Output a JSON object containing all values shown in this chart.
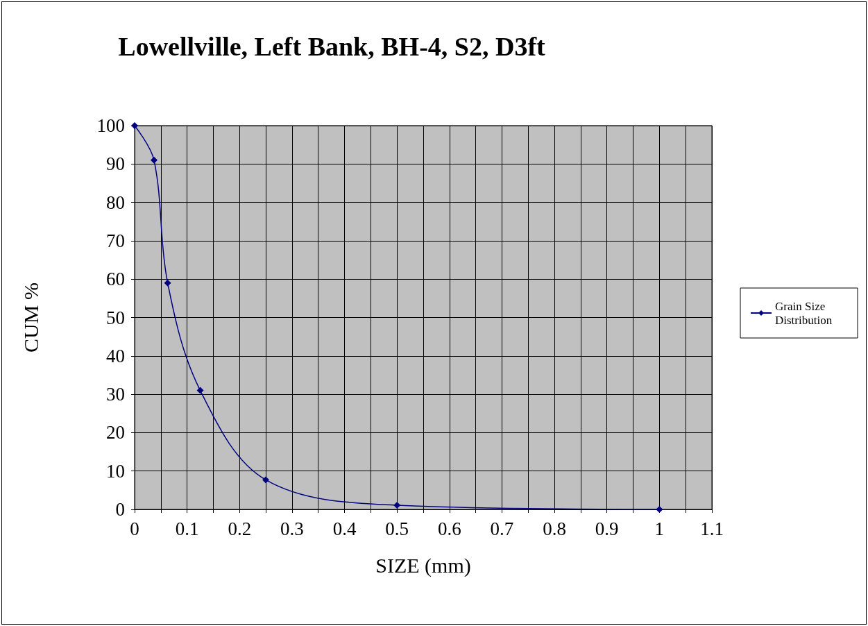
{
  "chart_data": {
    "type": "line",
    "title": "Lowellville, Left Bank, BH-4, S2, D3ft",
    "xlabel": "SIZE (mm)",
    "ylabel": "CUM %",
    "x": [
      0,
      0.037,
      0.063,
      0.125,
      0.25,
      0.5,
      1
    ],
    "series": [
      {
        "name": "Grain Size Distribution",
        "color": "#000080",
        "values": [
          100,
          91,
          59,
          31,
          7.7,
          1.1,
          0
        ]
      }
    ],
    "xlim": [
      0,
      1.1
    ],
    "xticks": [
      0,
      {
        "value": 0.05,
        "label": null
      },
      0.1,
      {
        "value": 0.15,
        "label": null
      },
      0.2,
      {
        "value": 0.25,
        "label": null
      },
      0.3,
      {
        "value": 0.35,
        "label": null
      },
      0.4,
      {
        "value": 0.45,
        "label": null
      },
      0.5,
      {
        "value": 0.55,
        "label": null
      },
      0.6,
      {
        "value": 0.65,
        "label": null
      },
      0.7,
      {
        "value": 0.75,
        "label": null
      },
      0.8,
      {
        "value": 0.85,
        "label": null
      },
      0.9,
      {
        "value": 0.95,
        "label": null
      },
      1,
      {
        "value": 1.05,
        "label": null
      },
      1.1
    ],
    "ylim": [
      0,
      100
    ],
    "yticks": [
      0,
      10,
      20,
      30,
      40,
      50,
      60,
      70,
      80,
      90,
      100
    ],
    "grid": true,
    "legend": "right",
    "marker": "diamond",
    "line_style": "solid"
  }
}
